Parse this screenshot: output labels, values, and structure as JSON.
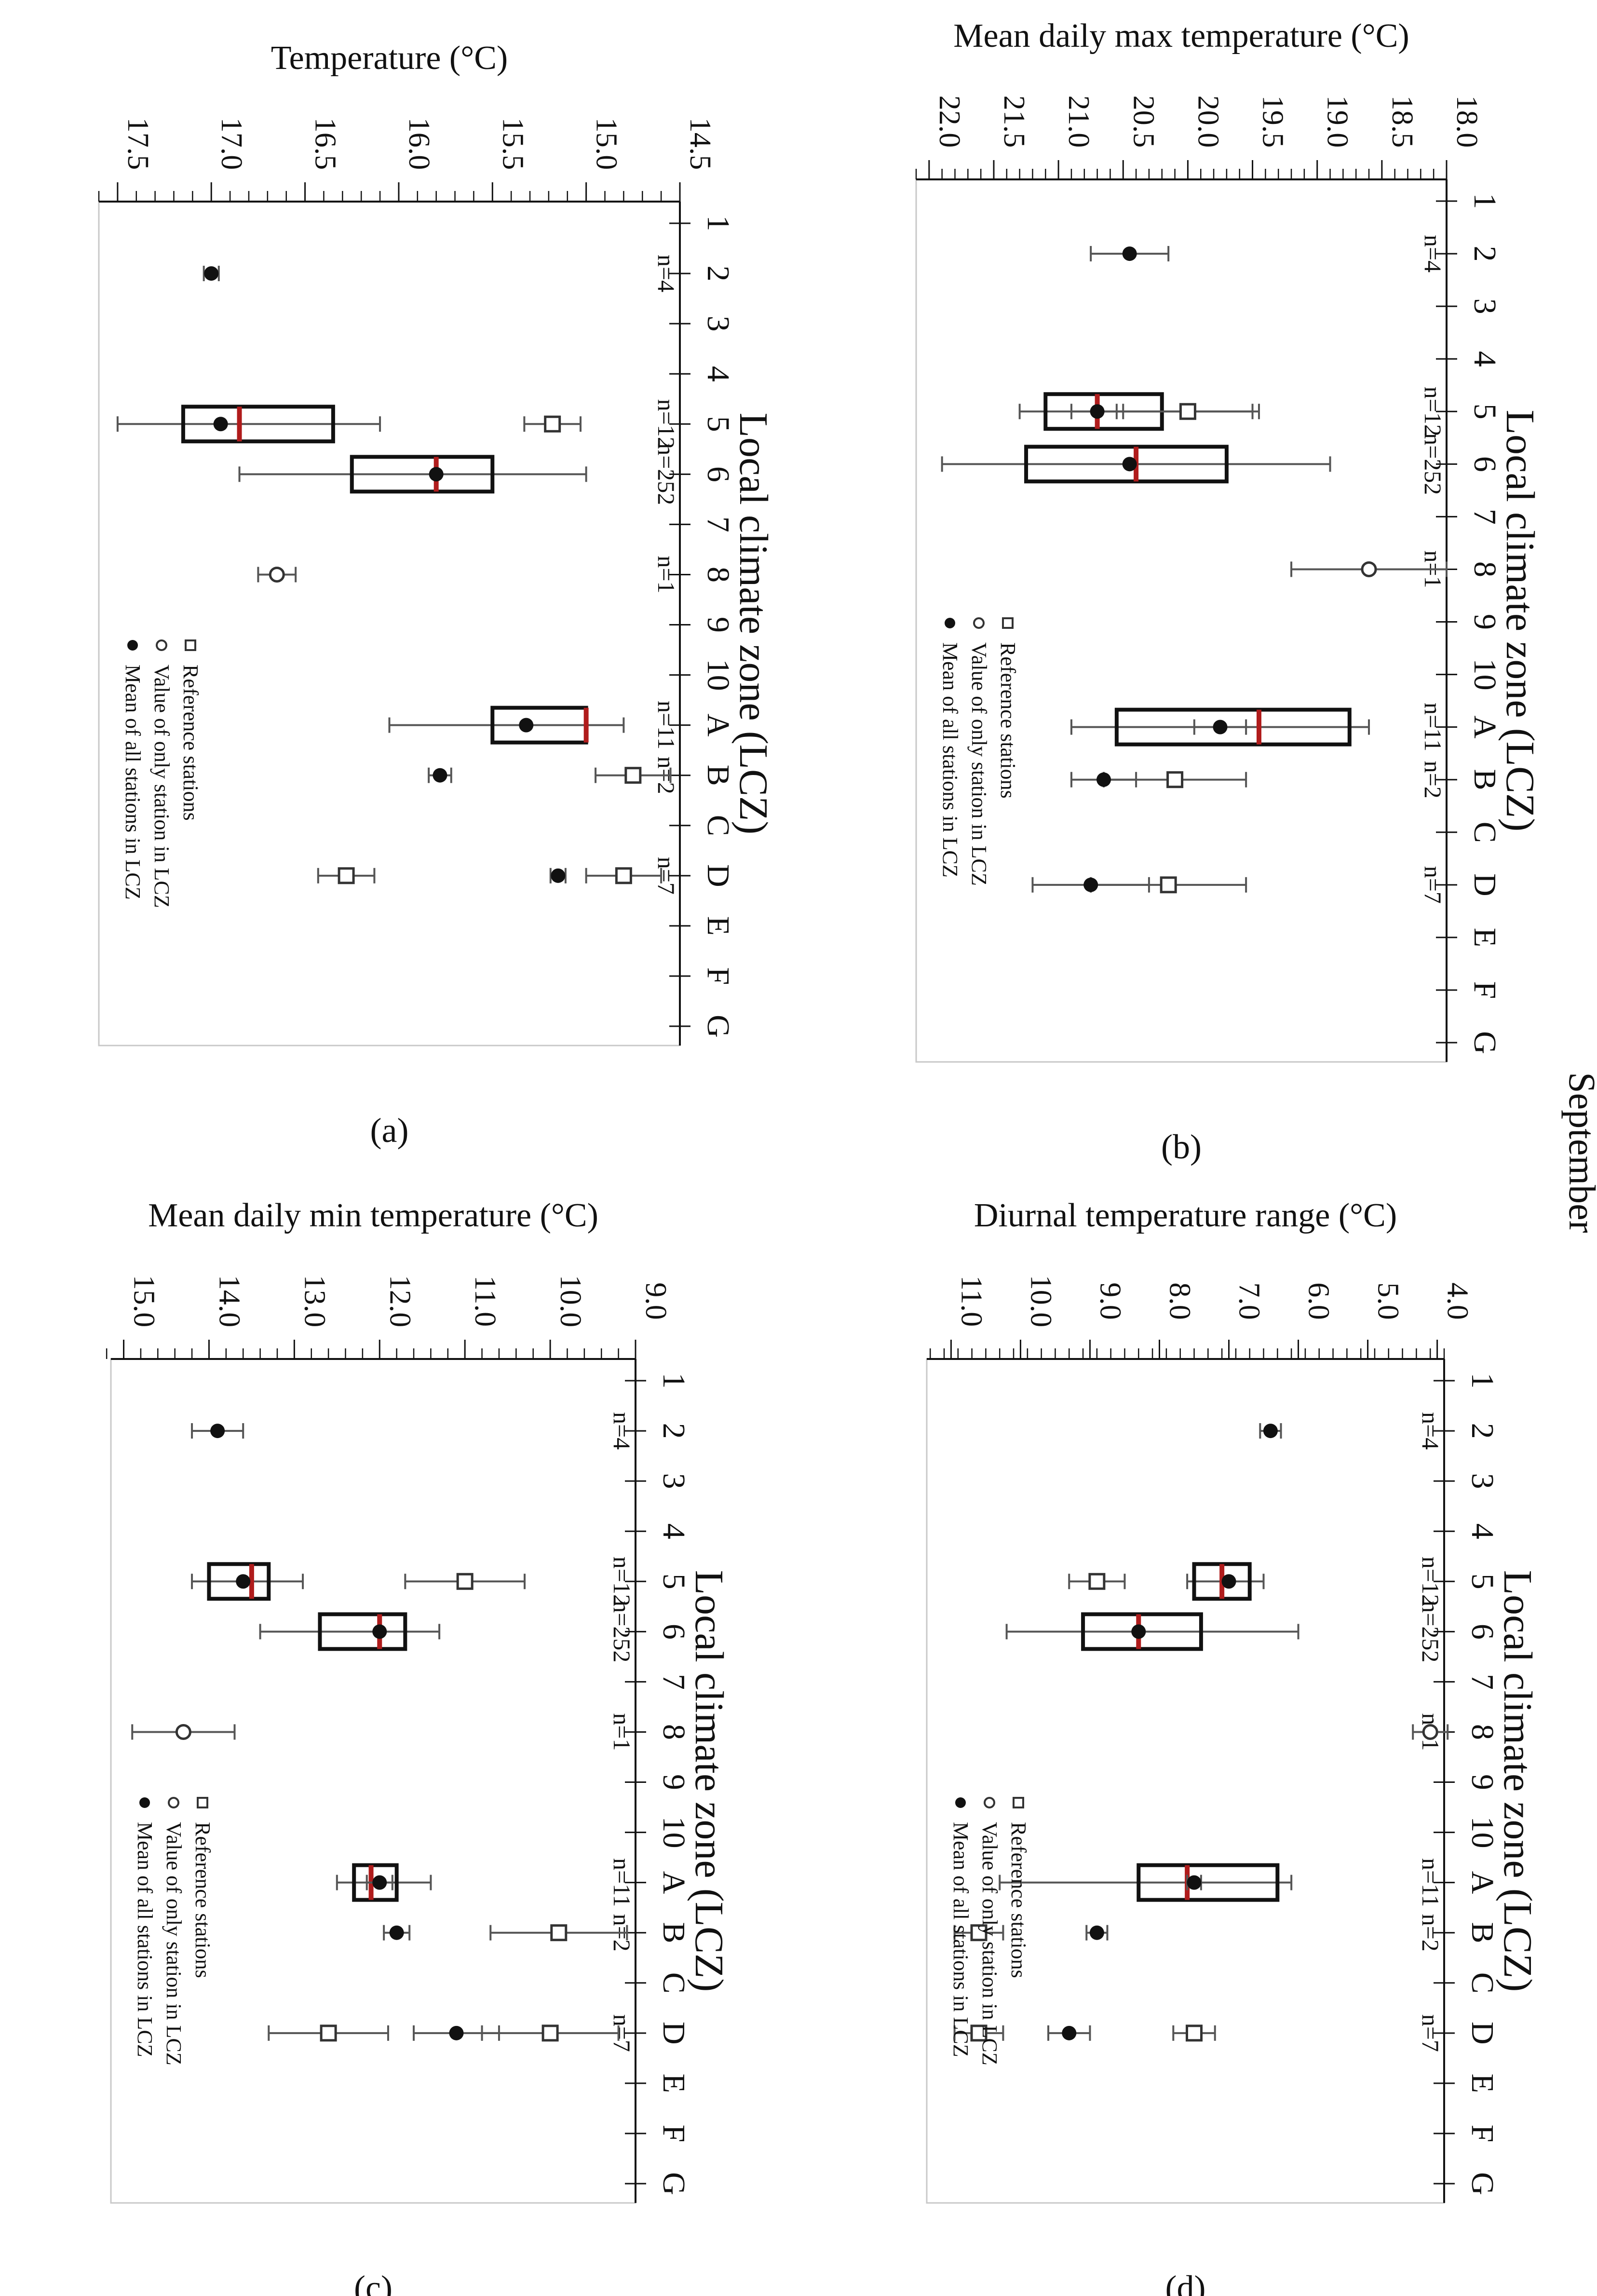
{
  "figure": {
    "month_label": "September",
    "zones": [
      "1",
      "2",
      "3",
      "4",
      "5",
      "6",
      "7",
      "8",
      "9",
      "10",
      "A",
      "B",
      "C",
      "D",
      "E",
      "F",
      "G"
    ],
    "xlabel": "Local climate zone (LCZ)",
    "legend": [
      {
        "key": "mean",
        "label": "Mean of all stations in LCZ"
      },
      {
        "key": "single",
        "label": "Value of only station in LCZ"
      },
      {
        "key": "ref",
        "label": "Reference stations"
      }
    ],
    "colors": {
      "median": "#b01c1c",
      "ink": "#111111",
      "whisker": "#555555",
      "frame": "#c8c8c8"
    }
  },
  "chart_data": [
    {
      "id": "a",
      "panel_label": "(a)",
      "type": "box",
      "title": "Temperature (°C)",
      "xlabel": "Local climate zone (LCZ)",
      "ylim": [
        14.5,
        17.6
      ],
      "yticks": [
        14.5,
        15.0,
        15.5,
        16.0,
        16.5,
        17.0,
        17.5
      ],
      "ytick_labels": [
        "14.5",
        "15.0",
        "15.5",
        "16.0",
        "16.5",
        "17.0",
        "17.5"
      ],
      "ytick_minor": 0.1,
      "counts": [
        {
          "zone": "2",
          "text": "n=4"
        },
        {
          "zone": "5",
          "text": "n=12"
        },
        {
          "zone": "6",
          "text": "n=252"
        },
        {
          "zone": "8",
          "text": "n=1"
        },
        {
          "zone": "A",
          "text": "n=11"
        },
        {
          "zone": "B",
          "text": "n=2"
        },
        {
          "zone": "D",
          "text": "n=7"
        }
      ],
      "boxes": [
        {
          "zone": "5",
          "q1": 16.35,
          "median": 16.85,
          "q3": 17.15,
          "low": 16.1,
          "high": 17.5
        },
        {
          "zone": "6",
          "q1": 15.5,
          "median": 15.8,
          "q3": 16.25,
          "low": 15.0,
          "high": 16.85
        },
        {
          "zone": "A",
          "q1": 15.0,
          "median": 15.0,
          "q3": 15.5,
          "low": 14.8,
          "high": 16.05
        }
      ],
      "means": [
        {
          "zone": "2",
          "value": 17.0,
          "err": 0.04
        },
        {
          "zone": "5",
          "value": 16.95,
          "err": 0.0
        },
        {
          "zone": "6",
          "value": 15.8,
          "err": 0.0
        },
        {
          "zone": "A",
          "value": 15.32,
          "err": 0.0
        },
        {
          "zone": "B",
          "value": 15.78,
          "err": 0.06
        },
        {
          "zone": "D",
          "value": 15.15,
          "err": 0.04
        }
      ],
      "singles": [
        {
          "zone": "8",
          "value": 16.65,
          "err": 0.1
        }
      ],
      "refs": [
        {
          "zone": "5",
          "value": 15.18,
          "err": 0.15
        },
        {
          "zone": "B",
          "value": 14.75,
          "err": 0.2
        },
        {
          "zone": "D",
          "value": 14.8,
          "err": 0.2
        },
        {
          "zone": "D",
          "value": 16.28,
          "err": 0.15
        }
      ]
    },
    {
      "id": "b",
      "panel_label": "(b)",
      "type": "box",
      "title": "Mean daily max temperature (°C)",
      "xlabel": "Local climate zone (LCZ)",
      "ylim": [
        18.0,
        22.1
      ],
      "yticks": [
        18.0,
        18.5,
        19.0,
        19.5,
        20.0,
        20.5,
        21.0,
        21.5,
        22.0
      ],
      "ytick_labels": [
        "18.0",
        "18.5",
        "19.0",
        "19.5",
        "20.0",
        "20.5",
        "21.0",
        "21.5",
        "22.0"
      ],
      "ytick_minor": 0.1,
      "counts": [
        {
          "zone": "2",
          "text": "n=4"
        },
        {
          "zone": "5",
          "text": "n=12"
        },
        {
          "zone": "6",
          "text": "n=252"
        },
        {
          "zone": "8",
          "text": "n=1"
        },
        {
          "zone": "A",
          "text": "n=11"
        },
        {
          "zone": "B",
          "text": "n=2"
        },
        {
          "zone": "D",
          "text": "n=7"
        }
      ],
      "boxes": [
        {
          "zone": "5",
          "q1": 20.2,
          "median": 20.7,
          "q3": 21.1,
          "low": 19.5,
          "high": 21.3
        },
        {
          "zone": "6",
          "q1": 19.7,
          "median": 20.4,
          "q3": 21.25,
          "low": 18.9,
          "high": 21.9
        },
        {
          "zone": "A",
          "q1": 18.75,
          "median": 19.45,
          "q3": 20.55,
          "low": 18.6,
          "high": 20.9
        }
      ],
      "means": [
        {
          "zone": "2",
          "value": 20.45,
          "err": 0.3
        },
        {
          "zone": "5",
          "value": 20.7,
          "err": 0.2
        },
        {
          "zone": "6",
          "value": 20.45,
          "err": 0.0
        },
        {
          "zone": "A",
          "value": 19.75,
          "err": 0.2
        },
        {
          "zone": "B",
          "value": 20.65,
          "err": 0.25
        },
        {
          "zone": "D",
          "value": 20.75,
          "err": 0.45
        }
      ],
      "singles": [
        {
          "zone": "8",
          "value": 18.6,
          "err": 0.6
        }
      ],
      "refs": [
        {
          "zone": "5",
          "value": 20.0,
          "err": 0.55
        },
        {
          "zone": "B",
          "value": 20.1,
          "err": 0.55
        },
        {
          "zone": "D",
          "value": 20.15,
          "err": 0.6
        }
      ]
    },
    {
      "id": "c",
      "panel_label": "(c)",
      "type": "box",
      "title": "Mean daily min temperature (°C)",
      "xlabel": "Local climate zone (LCZ)",
      "ylim": [
        9.0,
        15.15
      ],
      "yticks": [
        9.0,
        10.0,
        11.0,
        12.0,
        13.0,
        14.0,
        15.0
      ],
      "ytick_labels": [
        "9.0",
        "10.0",
        "11.0",
        "12.0",
        "13.0",
        "14.0",
        "15.0"
      ],
      "ytick_minor": 0.2,
      "counts": [
        {
          "zone": "2",
          "text": "n=4"
        },
        {
          "zone": "5",
          "text": "n=12"
        },
        {
          "zone": "6",
          "text": "n=252"
        },
        {
          "zone": "8",
          "text": "n=1"
        },
        {
          "zone": "A",
          "text": "n=11"
        },
        {
          "zone": "B",
          "text": "n=2"
        },
        {
          "zone": "D",
          "text": "n=7"
        }
      ],
      "boxes": [
        {
          "zone": "5",
          "q1": 13.3,
          "median": 13.5,
          "q3": 14.0,
          "low": 12.9,
          "high": 14.2
        },
        {
          "zone": "6",
          "q1": 11.7,
          "median": 12.0,
          "q3": 12.7,
          "low": 11.3,
          "high": 13.4
        },
        {
          "zone": "A",
          "q1": 11.8,
          "median": 12.1,
          "q3": 12.3,
          "low": 11.4,
          "high": 12.5
        }
      ],
      "means": [
        {
          "zone": "2",
          "value": 13.9,
          "err": 0.3
        },
        {
          "zone": "5",
          "value": 13.6,
          "err": 0.0
        },
        {
          "zone": "6",
          "value": 12.0,
          "err": 0.0
        },
        {
          "zone": "A",
          "value": 12.0,
          "err": 0.15
        },
        {
          "zone": "B",
          "value": 11.8,
          "err": 0.15
        },
        {
          "zone": "D",
          "value": 11.1,
          "err": 0.5
        }
      ],
      "singles": [
        {
          "zone": "8",
          "value": 14.3,
          "err": 0.6
        }
      ],
      "refs": [
        {
          "zone": "5",
          "value": 11.0,
          "err": 0.7
        },
        {
          "zone": "B",
          "value": 9.9,
          "err": 0.8
        },
        {
          "zone": "D",
          "value": 10.0,
          "err": 0.8
        },
        {
          "zone": "D",
          "value": 12.6,
          "err": 0.7
        }
      ]
    },
    {
      "id": "d",
      "panel_label": "(d)",
      "type": "box",
      "title": "Diurnal temperature range (°C)",
      "xlabel": "Local climate zone (LCZ)",
      "ylim": [
        3.9,
        11.35
      ],
      "yticks": [
        4.0,
        5.0,
        6.0,
        7.0,
        8.0,
        9.0,
        10.0,
        11.0
      ],
      "ytick_labels": [
        "4.0",
        "5.0",
        "6.0",
        "7.0",
        "8.0",
        "9.0",
        "10.0",
        "11.0"
      ],
      "ytick_minor": 0.2,
      "counts": [
        {
          "zone": "2",
          "text": "n=4"
        },
        {
          "zone": "5",
          "text": "n=12"
        },
        {
          "zone": "6",
          "text": "n=252"
        },
        {
          "zone": "8",
          "text": "n=1"
        },
        {
          "zone": "A",
          "text": "n=11"
        },
        {
          "zone": "B",
          "text": "n=2"
        },
        {
          "zone": "D",
          "text": "n=7"
        }
      ],
      "boxes": [
        {
          "zone": "5",
          "q1": 6.7,
          "median": 7.1,
          "q3": 7.5,
          "low": 6.5,
          "high": 7.6
        },
        {
          "zone": "6",
          "q1": 7.4,
          "median": 8.3,
          "q3": 9.1,
          "low": 6.0,
          "high": 10.2
        },
        {
          "zone": "A",
          "q1": 6.3,
          "median": 7.6,
          "q3": 8.3,
          "low": 6.1,
          "high": 10.3
        }
      ],
      "means": [
        {
          "zone": "2",
          "value": 6.4,
          "err": 0.15
        },
        {
          "zone": "5",
          "value": 7.0,
          "err": 0.0
        },
        {
          "zone": "6",
          "value": 8.3,
          "err": 0.0
        },
        {
          "zone": "A",
          "value": 7.5,
          "err": 0.1
        },
        {
          "zone": "B",
          "value": 8.9,
          "err": 0.15
        },
        {
          "zone": "D",
          "value": 9.3,
          "err": 0.3
        }
      ],
      "singles": [
        {
          "zone": "8",
          "value": 4.1,
          "err": 0.25
        }
      ],
      "refs": [
        {
          "zone": "5",
          "value": 8.9,
          "err": 0.4
        },
        {
          "zone": "B",
          "value": 10.6,
          "err": 0.35
        },
        {
          "zone": "D",
          "value": 7.5,
          "err": 0.3
        },
        {
          "zone": "D",
          "value": 10.6,
          "err": 0.35
        }
      ]
    }
  ]
}
